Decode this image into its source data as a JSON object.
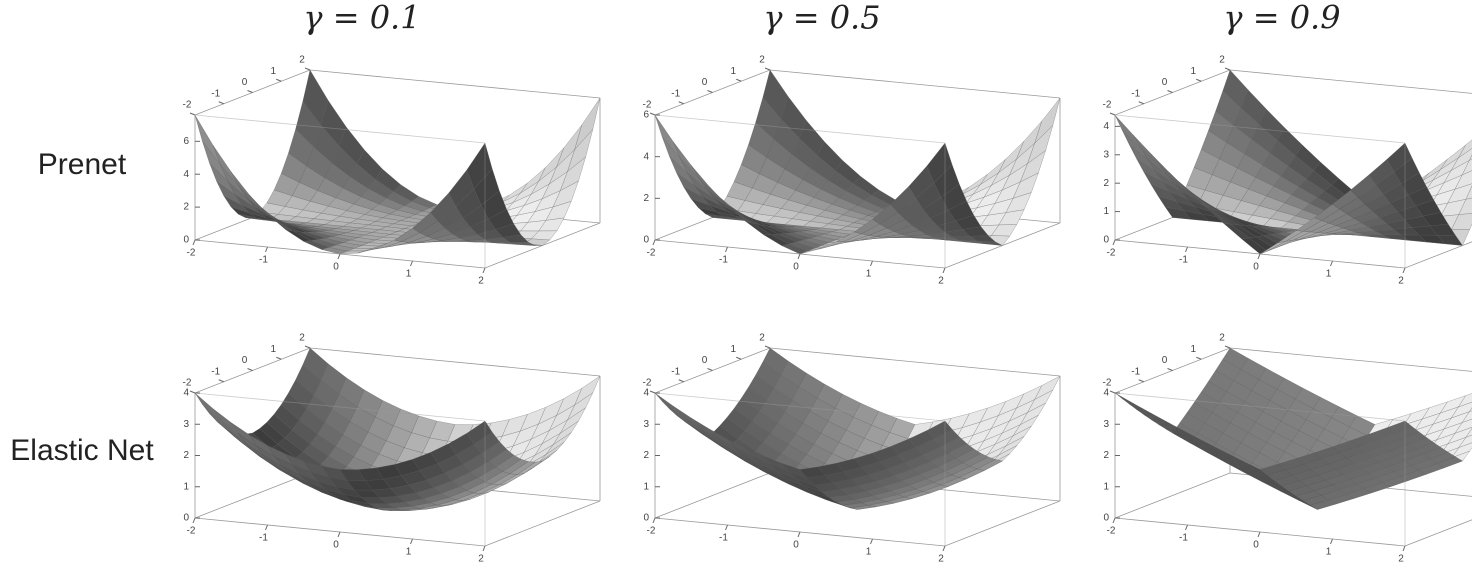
{
  "columns": [
    {
      "title": {
        "value": 0.1,
        "label": "γ = 0.1"
      }
    },
    {
      "title": {
        "value": 0.5,
        "label": "γ = 0.5"
      }
    },
    {
      "title": {
        "value": 0.9,
        "label": "γ = 0.9"
      }
    }
  ],
  "xticks": [
    -2,
    -1,
    0,
    1,
    2
  ],
  "yticks": [
    -2,
    -1,
    0,
    1,
    2
  ],
  "rows": [
    {
      "label": "Prenet",
      "panels": [
        {
          "zlim": [
            0,
            7.6
          ],
          "zticks": [
            0,
            2,
            4,
            6
          ]
        },
        {
          "zlim": [
            0,
            6
          ],
          "zticks": [
            0,
            2,
            4,
            6
          ]
        },
        {
          "zlim": [
            0,
            4.4
          ],
          "zticks": [
            0,
            1,
            2,
            3,
            4
          ]
        }
      ]
    },
    {
      "label": "Elastic Net",
      "panels": [
        {
          "zlim": [
            0,
            4
          ],
          "zticks": [
            0,
            1,
            2,
            3,
            4
          ]
        },
        {
          "zlim": [
            0,
            4
          ],
          "zticks": [
            0,
            1,
            2,
            3,
            4
          ]
        },
        {
          "zlim": [
            0,
            4
          ],
          "zticks": [
            0,
            1,
            2,
            3,
            4
          ]
        }
      ]
    }
  ]
}
